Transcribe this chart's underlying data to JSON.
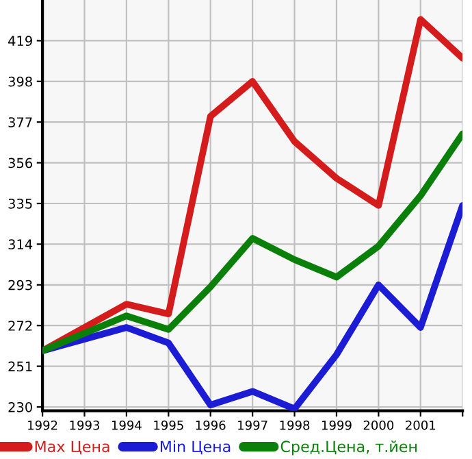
{
  "chart_data": {
    "type": "line",
    "x": [
      1992,
      1993,
      1994,
      1995,
      1996,
      1997,
      1998,
      1999,
      2000,
      2001,
      2002
    ],
    "series": [
      {
        "name": "Max Цена",
        "color": "#d41c1c",
        "values": [
          259,
          271,
          283,
          278,
          380,
          398,
          367,
          348,
          334,
          430,
          410
        ]
      },
      {
        "name": "Min Цена",
        "color": "#1c1cd4",
        "values": [
          259,
          265,
          271,
          263,
          231,
          238,
          229,
          257,
          293,
          271,
          334
        ]
      },
      {
        "name": "Сред.Цена, т.йен",
        "color": "#0a800a",
        "values": [
          259,
          268,
          277,
          270,
          292,
          317,
          306,
          297,
          313,
          339,
          371
        ]
      }
    ],
    "xlim": [
      1992,
      2002
    ],
    "xticks": [
      1992,
      1993,
      1994,
      1995,
      1996,
      1997,
      1998,
      1999,
      2000,
      2001,
      {
        "value": 2002,
        "label": null
      }
    ],
    "ylim": [
      228,
      440
    ],
    "yticks": [
      230,
      251,
      272,
      293,
      314,
      335,
      356,
      377,
      398,
      419
    ],
    "grid": true,
    "legend": "bottom",
    "marker": "none",
    "line_style": "solid"
  }
}
